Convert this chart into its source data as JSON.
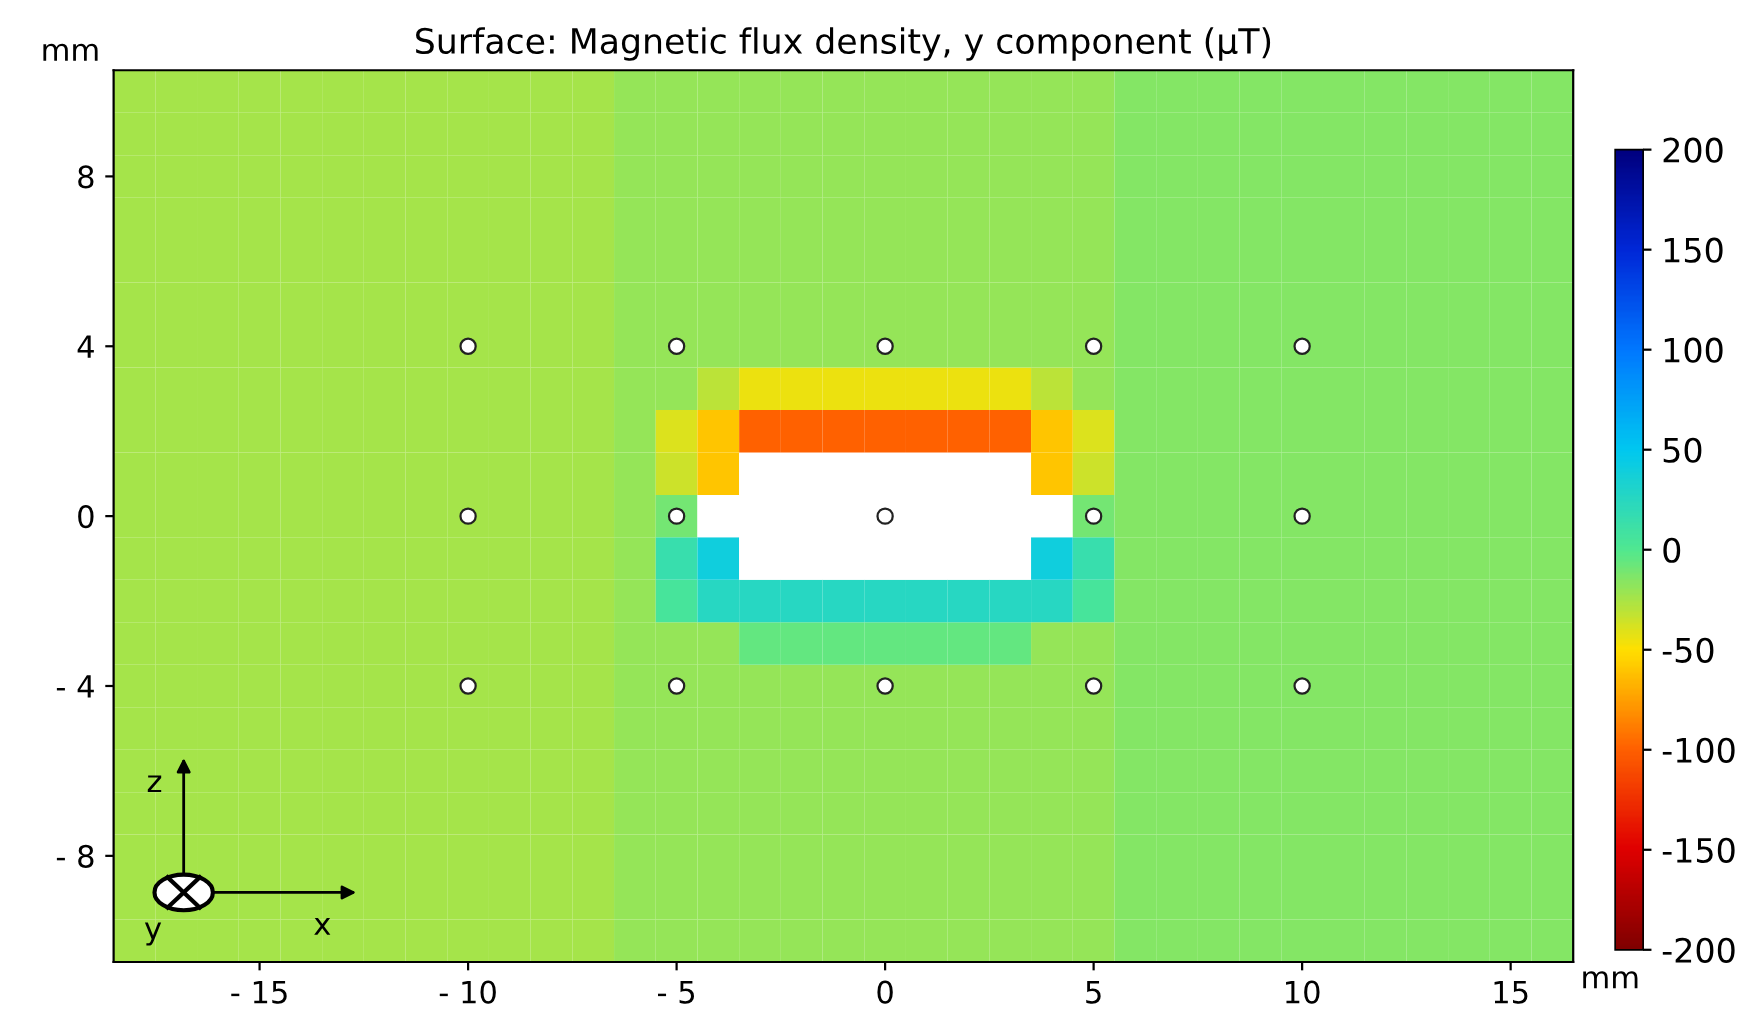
{
  "chart_data": {
    "type": "heatmap",
    "title": "Surface: Magnetic flux density, y component (µT)",
    "annotations": [
      "mm",
      "mm",
      "z",
      "x",
      "y"
    ],
    "categories": [
      null,
      null,
      null,
      "- 15",
      null,
      null,
      null,
      null,
      "- 10",
      null,
      null,
      null,
      null,
      "- 5",
      null,
      null,
      null,
      null,
      "0",
      null,
      null,
      null,
      null,
      "5",
      null,
      null,
      null,
      null,
      "10",
      null,
      null,
      null,
      null,
      "15",
      null
    ],
    "y_categories": [
      null,
      null,
      "8",
      null,
      null,
      null,
      "4",
      null,
      null,
      null,
      "0",
      null,
      null,
      null,
      "- 4",
      null,
      null,
      null,
      "- 8",
      null,
      null
    ],
    "clim": [
      -200,
      200
    ],
    "cticks": [
      -200,
      -150,
      -100,
      -50,
      0,
      50,
      100,
      150,
      200
    ],
    "colors": [
      "#800000",
      "#e00000",
      "#ff6000",
      "#ffe000",
      "#50e890",
      "#00c8f0",
      "#0078ff",
      "#0028d8",
      "#00007f"
    ],
    "cells": [
      [
        -25,
        -25,
        -25,
        -25,
        -25,
        -25,
        -25,
        -25,
        -25,
        -25,
        -25,
        -25,
        -20,
        -20,
        -20,
        -20,
        -20,
        -20,
        -20,
        -20,
        -20,
        -20,
        -20,
        -20,
        -15,
        -15,
        -15,
        -15,
        -15,
        -15,
        -15,
        -15,
        -15,
        -15,
        -15
      ],
      [
        -25,
        -25,
        -25,
        -25,
        -25,
        -25,
        -25,
        -25,
        -25,
        -25,
        -25,
        -25,
        -20,
        -20,
        -20,
        -20,
        -20,
        -20,
        -20,
        -20,
        -20,
        -20,
        -20,
        -20,
        -15,
        -15,
        -15,
        -15,
        -15,
        -15,
        -15,
        -15,
        -15,
        -15,
        -15
      ],
      [
        -25,
        -25,
        -25,
        -25,
        -25,
        -25,
        -25,
        -25,
        -25,
        -25,
        -25,
        -25,
        -20,
        -20,
        -20,
        -20,
        -20,
        -20,
        -20,
        -20,
        -20,
        -20,
        -20,
        -20,
        -15,
        -15,
        -15,
        -15,
        -15,
        -15,
        -15,
        -15,
        -15,
        -15,
        -15
      ],
      [
        -25,
        -25,
        -25,
        -25,
        -25,
        -25,
        -25,
        -25,
        -25,
        -25,
        -25,
        -25,
        -20,
        -20,
        -20,
        -20,
        -20,
        -20,
        -20,
        -20,
        -20,
        -20,
        -20,
        -20,
        -15,
        -15,
        -15,
        -15,
        -15,
        -15,
        -15,
        -15,
        -15,
        -15,
        -15
      ],
      [
        -25,
        -25,
        -25,
        -25,
        -25,
        -25,
        -25,
        -25,
        -25,
        -25,
        -25,
        -25,
        -20,
        -20,
        -20,
        -20,
        -20,
        -20,
        -20,
        -20,
        -20,
        -20,
        -20,
        -20,
        -15,
        -15,
        -15,
        -15,
        -15,
        -15,
        -15,
        -15,
        -15,
        -15,
        -15
      ],
      [
        -25,
        -25,
        -25,
        -25,
        -25,
        -25,
        -25,
        -25,
        -25,
        -25,
        -25,
        -25,
        -20,
        -20,
        -20,
        -20,
        -20,
        -20,
        -20,
        -20,
        -20,
        -20,
        -20,
        -20,
        -15,
        -15,
        -15,
        -15,
        -15,
        -15,
        -15,
        -15,
        -15,
        -15,
        -15
      ],
      [
        -25,
        -25,
        -25,
        -25,
        -25,
        -25,
        -25,
        -25,
        -25,
        -25,
        -25,
        -25,
        -20,
        -20,
        -20,
        -20,
        -20,
        -20,
        -20,
        -20,
        -20,
        -20,
        -20,
        -20,
        -15,
        -15,
        -15,
        -15,
        -15,
        -15,
        -15,
        -15,
        -15,
        -15,
        -15
      ],
      [
        -25,
        -25,
        -25,
        -25,
        -25,
        -25,
        -25,
        -25,
        -25,
        -25,
        -25,
        -25,
        -20,
        -20,
        -30,
        -45,
        -45,
        -45,
        -45,
        -45,
        -45,
        -45,
        -30,
        -20,
        -15,
        -15,
        -15,
        -15,
        -15,
        -15,
        -15,
        -15,
        -15,
        -15,
        -15
      ],
      [
        -25,
        -25,
        -25,
        -25,
        -25,
        -25,
        -25,
        -25,
        -25,
        -25,
        -25,
        -25,
        -20,
        -40,
        -60,
        -100,
        -100,
        -100,
        -100,
        -100,
        -100,
        -100,
        -60,
        -40,
        -15,
        -15,
        -15,
        -15,
        -15,
        -15,
        -15,
        -15,
        -15,
        -15,
        -15
      ],
      [
        -25,
        -25,
        -25,
        -25,
        -25,
        -25,
        -25,
        -25,
        -25,
        -25,
        -25,
        -25,
        -20,
        -35,
        -60,
        null,
        null,
        null,
        null,
        null,
        null,
        null,
        -60,
        -35,
        -15,
        -15,
        -15,
        -15,
        -15,
        -15,
        -15,
        -15,
        -15,
        -15,
        -15
      ],
      [
        -25,
        -25,
        -25,
        -25,
        -25,
        -25,
        -25,
        -25,
        -25,
        -25,
        -25,
        -25,
        -20,
        -10,
        null,
        null,
        null,
        null,
        null,
        null,
        null,
        null,
        null,
        -10,
        -15,
        -15,
        -15,
        -15,
        -15,
        -15,
        -15,
        -15,
        -15,
        -15,
        -15
      ],
      [
        -25,
        -25,
        -25,
        -25,
        -25,
        -25,
        -25,
        -25,
        -25,
        -25,
        -25,
        -25,
        -20,
        15,
        40,
        null,
        null,
        null,
        null,
        null,
        null,
        null,
        40,
        15,
        -15,
        -15,
        -15,
        -15,
        -15,
        -15,
        -15,
        -15,
        -15,
        -15,
        -15
      ],
      [
        -25,
        -25,
        -25,
        -25,
        -25,
        -25,
        -25,
        -25,
        -25,
        -25,
        -25,
        -25,
        -20,
        5,
        25,
        25,
        25,
        25,
        25,
        25,
        25,
        25,
        25,
        5,
        -15,
        -15,
        -15,
        -15,
        -15,
        -15,
        -15,
        -15,
        -15,
        -15,
        -15
      ],
      [
        -25,
        -25,
        -25,
        -25,
        -25,
        -25,
        -25,
        -25,
        -25,
        -25,
        -25,
        -25,
        -20,
        -20,
        -20,
        -5,
        -5,
        -5,
        -5,
        -5,
        -5,
        -5,
        -20,
        -20,
        -15,
        -15,
        -15,
        -15,
        -15,
        -15,
        -15,
        -15,
        -15,
        -15,
        -15
      ],
      [
        -25,
        -25,
        -25,
        -25,
        -25,
        -25,
        -25,
        -25,
        -25,
        -25,
        -25,
        -25,
        -20,
        -20,
        -20,
        -20,
        -20,
        -20,
        -20,
        -20,
        -20,
        -20,
        -20,
        -20,
        -15,
        -15,
        -15,
        -15,
        -15,
        -15,
        -15,
        -15,
        -15,
        -15,
        -15
      ],
      [
        -25,
        -25,
        -25,
        -25,
        -25,
        -25,
        -25,
        -25,
        -25,
        -25,
        -25,
        -25,
        -20,
        -20,
        -20,
        -20,
        -20,
        -20,
        -20,
        -20,
        -20,
        -20,
        -20,
        -20,
        -15,
        -15,
        -15,
        -15,
        -15,
        -15,
        -15,
        -15,
        -15,
        -15,
        -15
      ],
      [
        -25,
        -25,
        -25,
        -25,
        -25,
        -25,
        -25,
        -25,
        -25,
        -25,
        -25,
        -25,
        -20,
        -20,
        -20,
        -20,
        -20,
        -20,
        -20,
        -20,
        -20,
        -20,
        -20,
        -20,
        -15,
        -15,
        -15,
        -15,
        -15,
        -15,
        -15,
        -15,
        -15,
        -15,
        -15
      ],
      [
        -25,
        -25,
        -25,
        -25,
        -25,
        -25,
        -25,
        -25,
        -25,
        -25,
        -25,
        -25,
        -20,
        -20,
        -20,
        -20,
        -20,
        -20,
        -20,
        -20,
        -20,
        -20,
        -20,
        -20,
        -15,
        -15,
        -15,
        -15,
        -15,
        -15,
        -15,
        -15,
        -15,
        -15,
        -15
      ],
      [
        -25,
        -25,
        -25,
        -25,
        -25,
        -25,
        -25,
        -25,
        -25,
        -25,
        -25,
        -25,
        -20,
        -20,
        -20,
        -20,
        -20,
        -20,
        -20,
        -20,
        -20,
        -20,
        -20,
        -20,
        -15,
        -15,
        -15,
        -15,
        -15,
        -15,
        -15,
        -15,
        -15,
        -15,
        -15
      ],
      [
        -25,
        -25,
        -25,
        -25,
        -25,
        -25,
        -25,
        -25,
        -25,
        -25,
        -25,
        -25,
        -20,
        -20,
        -20,
        -20,
        -20,
        -20,
        -20,
        -20,
        -20,
        -20,
        -20,
        -20,
        -15,
        -15,
        -15,
        -15,
        -15,
        -15,
        -15,
        -15,
        -15,
        -15,
        -15
      ],
      [
        -25,
        -25,
        -25,
        -25,
        -25,
        -25,
        -25,
        -25,
        -25,
        -25,
        -25,
        -25,
        -20,
        -20,
        -20,
        -20,
        -20,
        -20,
        -20,
        -20,
        -20,
        -20,
        -20,
        -20,
        -15,
        -15,
        -15,
        -15,
        -15,
        -15,
        -15,
        -15,
        -15,
        -15,
        -15
      ]
    ]
  }
}
